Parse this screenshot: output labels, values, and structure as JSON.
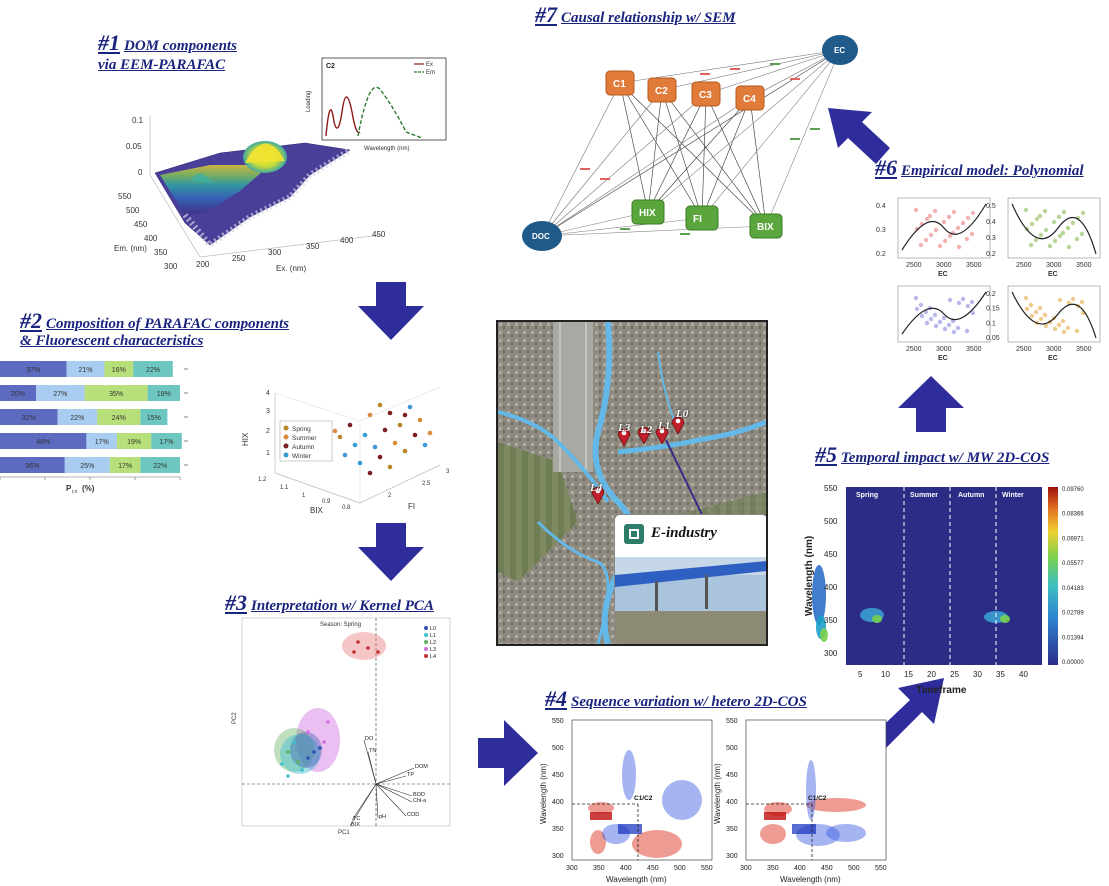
{
  "steps": {
    "s1": {
      "num": "#1",
      "line1": "DOM components",
      "line2": "via EEM-PARAFAC"
    },
    "s2": {
      "num": "#2",
      "line1": "Composition of PARAFAC components",
      "line2": "& Fluorescent characteristics"
    },
    "s3": {
      "num": "#3",
      "line1": "Interpretation w/ Kernel PCA"
    },
    "s4": {
      "num": "#4",
      "line1": "Sequence variation w/ hetero 2D-COS"
    },
    "s5": {
      "num": "#5",
      "line1": "Temporal impact w/ MW 2D-COS"
    },
    "s6": {
      "num": "#6",
      "line1": "Empirical model: Polynomial"
    },
    "s7": {
      "num": "#7",
      "line1": "Causal relationship w/ SEM"
    }
  },
  "eem": {
    "z_ticks": [
      "0.1",
      "0.05",
      "0"
    ],
    "em_ticks": [
      "550",
      "500",
      "450",
      "400",
      "350",
      "300"
    ],
    "ex_ticks": [
      "200",
      "250",
      "300",
      "350",
      "400",
      "450"
    ],
    "em_label": "Em. (nm)",
    "ex_label": "Ex. (nm)"
  },
  "loading_inset": {
    "title": "C2",
    "ylabel": "Loading",
    "xlabel": "Wavelength (nm)",
    "legend": [
      "Ex",
      "Em"
    ],
    "ex_color": "#8b1a1a",
    "em_color": "#2e7d32"
  },
  "composition": {
    "rows": [
      [
        "37%",
        "21%",
        "16%",
        "22%"
      ],
      [
        "20%",
        "27%",
        "35%",
        "18%"
      ],
      [
        "32%",
        "22%",
        "24%",
        "15%"
      ],
      [
        "48%",
        "17%",
        "19%",
        "17%"
      ],
      [
        "36%",
        "25%",
        "17%",
        "22%"
      ]
    ],
    "colors": [
      "#5c6bc0",
      "#a9cdf0",
      "#b8e07a",
      "#6ec6c0"
    ],
    "xlabel": "P",
    "xlabel_sub": "i,n",
    "xlabel_unit": "(%)"
  },
  "scatter3d": {
    "legend": [
      "Spring",
      "Summer",
      "Autumn",
      "Winter"
    ],
    "colors": [
      "#b8862b",
      "#d98b3b",
      "#7b1f1f",
      "#3a9ad9"
    ],
    "axes": {
      "z": "HIX",
      "x": "BIX",
      "y": "FI"
    },
    "z_ticks": [
      "1",
      "2",
      "3",
      "4"
    ],
    "x_ticks": [
      "1.2",
      "1.1",
      "1",
      "0.9",
      "0.8"
    ],
    "y_ticks": [
      "3",
      "2.5",
      "2"
    ]
  },
  "map": {
    "sites": [
      "L0",
      "L1",
      "L2",
      "L3",
      "L4"
    ],
    "industry_label": "E-industry"
  },
  "sem": {
    "components": [
      "C1",
      "C2",
      "C3",
      "C4"
    ],
    "indices": [
      "HIX",
      "FI",
      "BIX"
    ],
    "ec": "EC",
    "doc": "DOC"
  },
  "poly": {
    "xlabel": "EC",
    "x_ticks": [
      "2500",
      "3000",
      "3500"
    ],
    "p1_y": [
      "0.4",
      "0.3",
      "0.2"
    ],
    "p2_y": [
      "0.5",
      "0.4",
      "0.3",
      "0.2"
    ],
    "p4_y": [
      "0.2",
      "0.15",
      "0.1",
      "0.05"
    ],
    "colors": [
      "#e57373",
      "#7cb342",
      "#7e7ed8",
      "#e0a030"
    ]
  },
  "mw2dcos": {
    "seasons": [
      "Spring",
      "Summer",
      "Autumn",
      "Winter"
    ],
    "ylabel": "Wavelength (nm)",
    "xlabel": "Timeframe",
    "y_ticks": [
      "550",
      "500",
      "450",
      "400",
      "350",
      "300"
    ],
    "x_ticks": [
      "5",
      "10",
      "15",
      "20",
      "25",
      "30",
      "35",
      "40"
    ],
    "colorbar": [
      "0.09760",
      "0.08366",
      "0.06971",
      "0.05577",
      "0.04183",
      "0.02789",
      "0.01394",
      "0.00000"
    ]
  },
  "hetero2dcos": {
    "ylabel": "Wavelength (nm)",
    "xlabel": "Wavelength (nm)",
    "ticks": [
      "300",
      "350",
      "400",
      "450",
      "500",
      "550"
    ],
    "marker": "C1/C2"
  },
  "kpca": {
    "title": "Season: Spring",
    "legend": [
      "L0",
      "L1",
      "L2",
      "L3",
      "L4"
    ],
    "vectors": [
      "DO",
      "TN",
      "DOM",
      "TP",
      "BOD",
      "Chl-a",
      "COD",
      "pH",
      "TC",
      "BIX"
    ],
    "ylabel": "PC2",
    "xlabel": "PC1"
  }
}
